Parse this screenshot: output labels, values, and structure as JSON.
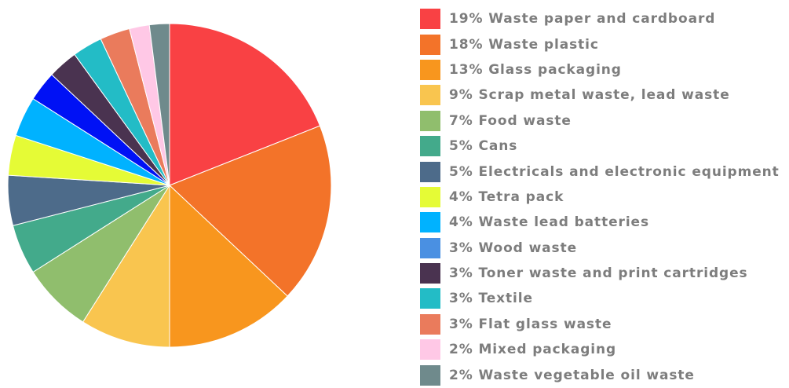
{
  "chart_data": {
    "type": "pie",
    "slices": [
      {
        "label": "19% Waste paper and cardboard",
        "value": 19,
        "color": "#f94144"
      },
      {
        "label": "18% Waste plastic",
        "value": 18,
        "color": "#f37329"
      },
      {
        "label": "13% Glass packaging",
        "value": 13,
        "color": "#f8961e"
      },
      {
        "label": "9% Scrap metal waste, lead waste",
        "value": 9,
        "color": "#f9c54f"
      },
      {
        "label": "7% Food waste",
        "value": 7,
        "color": "#90be6d"
      },
      {
        "label": "5% Cans",
        "value": 5,
        "color": "#43aa8b"
      },
      {
        "label": "5% Electricals and electronic equipment",
        "value": 5,
        "color": "#4d6b8a"
      },
      {
        "label": "4% Tetra pack",
        "value": 4,
        "color": "#e5fb36"
      },
      {
        "label": "4% Waste lead batteries",
        "value": 4,
        "color": "#00b2ff"
      },
      {
        "label": "3% Wood waste",
        "value": 3,
        "color": "#0011f5"
      },
      {
        "label": "3% Toner waste and print cartridges",
        "value": 3,
        "color": "#4a3350"
      },
      {
        "label": "3% Textile",
        "value": 3,
        "color": "#23bcc6"
      },
      {
        "label": "3% Flat glass waste",
        "value": 3,
        "color": "#ea7b5c"
      },
      {
        "label": "2% Mixed packaging",
        "value": 2,
        "color": "#ffc8e6"
      },
      {
        "label": "2% Waste vegetable oil waste",
        "value": 2,
        "color": "#6f8a8c"
      }
    ],
    "legend_swatch_overrides": {
      "3% Wood waste": "#4a90e2"
    },
    "legend_position": "right"
  }
}
